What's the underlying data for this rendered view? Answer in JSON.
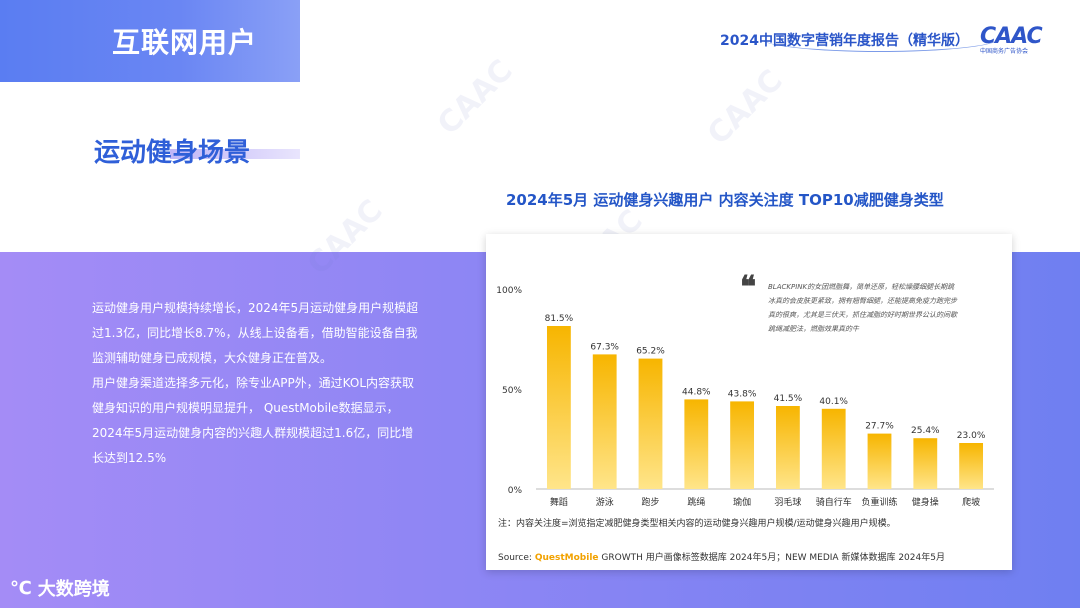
{
  "header": {
    "title": "互联网用户",
    "report": "2024中国数字营销年度报告（精华版）",
    "logo": "CAAC",
    "logo_sub": "中国商务广告协会"
  },
  "section": {
    "title": "运动健身场景"
  },
  "body": {
    "paragraphs": [
      "运动健身用户规模持续增长，2024年5月运动健身用户规模超过1.3亿，同比增长8.7%，从线上设备看，借助智能设备自我监测辅助健身已成规模，大众健身正在普及。",
      "用户健身渠道选择多元化，除专业APP外，通过KOL内容获取健身知识的用户规模明显提升， QuestMobile数据显示，2024年5月运动健身内容的兴趣人群规模超过1.6亿，同比增长达到12.5%"
    ]
  },
  "chart_heading": "2024年5月 运动健身兴趣用户 内容关注度 TOP10减肥健身类型",
  "quote": {
    "mark": "❝",
    "text": "BLACKPINK的女团燃脂舞，简单还原，轻松燥腰细腿长期跳冰真的会皮肤更紧致，拥有翘臀细腿，还能提高免疫力跑完步真的很爽，尤其是三伏天，抓住减脂的好时期世界公认的间歇跳绳减肥法，燃脂效果真的牛"
  },
  "note": "注：内容关注度=浏览指定减肥健身类型相关内容的运动健身兴趣用户规模/运动健身兴趣用户规模。",
  "source": {
    "label": "Source:",
    "qm": "QuestMobile",
    "rest": "GROWTH 用户画像标签数据库 2024年5月；NEW MEDIA 新媒体数据库 2024年5月"
  },
  "watermark": {
    "icon": "大数跨境-logo-icon",
    "text": "大数跨境"
  },
  "colors": {
    "accent_blue": "#2f5fd8",
    "bar_top": "#f7b500",
    "bar_bottom": "#ffe58a",
    "band_start": "#a48cf6",
    "band_end": "#6f7ff1"
  },
  "chart_data": {
    "type": "bar",
    "title": "2024年5月 运动健身兴趣用户 内容关注度 TOP10减肥健身类型",
    "categories": [
      "舞蹈",
      "游泳",
      "跑步",
      "跳绳",
      "瑜伽",
      "羽毛球",
      "骑自行车",
      "负重训练",
      "健身操",
      "爬坡"
    ],
    "values": [
      81.5,
      67.3,
      65.2,
      44.8,
      43.8,
      41.5,
      40.1,
      27.7,
      25.4,
      23.0
    ],
    "value_labels": [
      "81.5%",
      "67.3%",
      "65.2%",
      "44.8%",
      "43.8%",
      "41.5%",
      "40.1%",
      "27.7%",
      "25.4%",
      "23.0%"
    ],
    "yticks": [
      "0%",
      "50%",
      "100%"
    ],
    "ylim": [
      0,
      100
    ],
    "grid": false,
    "legend": "none"
  }
}
